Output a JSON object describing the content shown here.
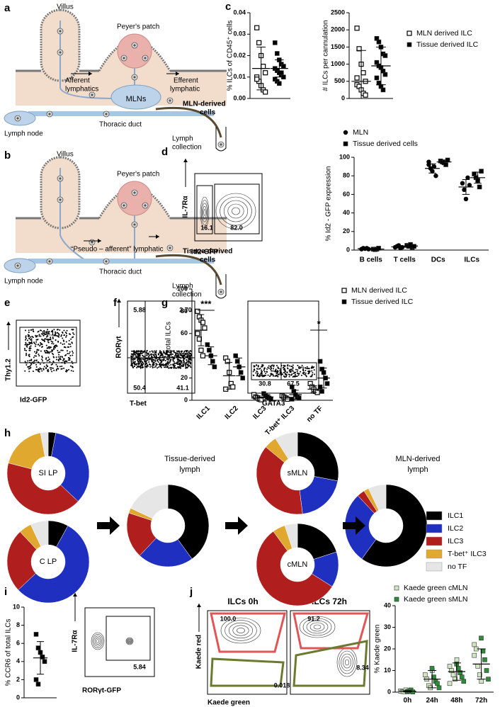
{
  "panel_labels": [
    "a",
    "b",
    "c",
    "d",
    "e",
    "f",
    "g",
    "h",
    "i",
    "j"
  ],
  "diagram_a": {
    "villus": "Villus",
    "peyers_patch": "Peyer's patch",
    "afferent": [
      "Afferent",
      "lymphatics"
    ],
    "efferent": [
      "Efferent",
      "lymphatic"
    ],
    "mlns": "MLNs",
    "output": [
      "MLN-derived",
      "cells"
    ],
    "lymph_node": "Lymph node",
    "thoracic_duct": "Thoracic duct",
    "collection": [
      "Lymph",
      "collection"
    ]
  },
  "diagram_b": {
    "villus": "Villus",
    "peyers_patch": "Peyer's patch",
    "pseudo_afferent": "“Pseudo – afferent” lymphatic",
    "output": [
      "Tissue-derived",
      "cells"
    ],
    "lymph_node": "Lymph node",
    "thoracic_duct": "Thoracic duct",
    "collection": [
      "Lymph",
      "collection"
    ]
  },
  "flow_plots": [
    {
      "y_label": "IL-7Rα",
      "x_label": "Id2-GFP",
      "gates": [
        "16.1",
        "82.0"
      ]
    },
    {
      "y_label": "Thy1.2",
      "x_label": "Id2-GFP",
      "gates": [
        "89.1"
      ]
    },
    {
      "y_label": "RORγt",
      "x_label": "T-bet",
      "gates": [
        "5.88",
        "2.70",
        "50.4",
        "41.1"
      ]
    },
    {
      "x_label": "GATA3",
      "gates": [
        "30.8",
        "67.5"
      ]
    },
    {
      "y_label": "IL-7Rα",
      "x_label": "RORγt-GFP",
      "gates": [
        "5.84"
      ]
    },
    {
      "title": "ILCs 0h",
      "y_label": "Kaede red",
      "x_label": "Kaede green",
      "gates": [
        "100.0",
        "0.018"
      ]
    },
    {
      "title": "ILCs 72h",
      "gates": [
        "91.2",
        "8.34"
      ]
    }
  ],
  "charts": [
    {
      "type": "dot",
      "y_label": "% ILCs of CD45⁺ cells",
      "categories": [
        null
      ],
      "ylim": [
        0,
        0.04
      ],
      "yticks": [
        {
          "value": 0,
          "label": "0.00"
        },
        0.01,
        0.02,
        0.03,
        0.04
      ],
      "series": [
        {
          "name": "MLN derived ILC",
          "marker": "open-square",
          "color": "#000000",
          "values": [
            [
              0.033,
              0.026,
              0.02,
              0.015,
              0.012,
              0.01,
              0.008,
              0.006,
              0.004,
              0.003,
              0.009
            ]
          ],
          "mean": [
            0.014
          ],
          "sd": [
            0.01
          ]
        },
        {
          "name": "Tissue derived ILC",
          "marker": "square",
          "color": "#000000",
          "values": [
            [
              0.026,
              0.021,
              0.018,
              0.016,
              0.015,
              0.014,
              0.013,
              0.012,
              0.011,
              0.01,
              0.009,
              0.008,
              0.007,
              0.012,
              0.015
            ]
          ],
          "mean": [
            0.014
          ],
          "sd": [
            0.004
          ]
        }
      ]
    },
    {
      "type": "dot",
      "y_label": "# ILCs per cannulation",
      "categories": [
        null
      ],
      "ylim": [
        0,
        2500
      ],
      "yticks": [
        0,
        500,
        1000,
        1500,
        2000,
        2500
      ],
      "legend": "right",
      "series": [
        {
          "name": "MLN derived ILC",
          "marker": "open-square",
          "color": "#000000",
          "values": [
            [
              2050,
              1450,
              1000,
              750,
              500,
              400,
              350,
              250,
              150,
              100,
              600
            ]
          ],
          "mean": [
            500
          ],
          "sd": [
            900
          ]
        },
        {
          "name": "Tissue derived ILC",
          "marker": "square",
          "color": "#000000",
          "values": [
            [
              1750,
              1650,
              1500,
              1300,
              1250,
              1050,
              950,
              900,
              800,
              700,
              600,
              450,
              350,
              250
            ]
          ],
          "mean": [
            950
          ],
          "sd": [
            550
          ]
        }
      ]
    },
    {
      "type": "dot",
      "y_label": "% Id2 - GFP expression",
      "categories": [
        "B cells",
        "T cells",
        "DCs",
        "ILCs"
      ],
      "ylim": [
        0,
        100
      ],
      "yticks": [
        0,
        20,
        40,
        60,
        80,
        100
      ],
      "legend": "top",
      "series": [
        {
          "name": "MLN",
          "marker": "circle",
          "color": "#000000",
          "values": [
            [
              1,
              2,
              1.5,
              2,
              1
            ],
            [
              3,
              4,
              5,
              2,
              3
            ],
            [
              92,
              88,
              85,
              90,
              80,
              95
            ],
            [
              72,
              65,
              55,
              78,
              70
            ]
          ],
          "mean": [
            1.5,
            3.5,
            88,
            68
          ],
          "sd": [
            0.5,
            1.2,
            5,
            8
          ]
        },
        {
          "name": "Tissue derived cells",
          "marker": "square",
          "color": "#000000",
          "values": [
            [
              1,
              0.5,
              1,
              2
            ],
            [
              5,
              4,
              6,
              3,
              4
            ],
            [
              96,
              95,
              94,
              92,
              97
            ],
            [
              82,
              78,
              75,
              68,
              85
            ]
          ],
          "mean": [
            1.1,
            4.4,
            95,
            78
          ],
          "sd": [
            0.6,
            1.1,
            2,
            6
          ]
        }
      ]
    },
    {
      "type": "dot",
      "y_label": "% of total ILCs",
      "categories": [
        "ILC1",
        "ILC2",
        "ILC3",
        "T-bet⁺ ILC3",
        "no TF"
      ],
      "ylim": [
        0,
        100
      ],
      "yticks": [
        0,
        20,
        40,
        60,
        80,
        100
      ],
      "legend": "right",
      "annotations": [
        "***",
        "*"
      ],
      "series": [
        {
          "name": "MLN derived ILC",
          "marker": "open-square",
          "color": "#000000",
          "values": [
            [
              80,
              75,
              72,
              70,
              65,
              60,
              55,
              45,
              40
            ],
            [
              38,
              35,
              25,
              15,
              12,
              10
            ],
            [
              5,
              3,
              2,
              1,
              0.5
            ],
            [
              4,
              3,
              2,
              1
            ],
            [
              15,
              12,
              10,
              8,
              7
            ]
          ],
          "mean": [
            63,
            22,
            2,
            2.5,
            10
          ],
          "sd": [
            14,
            12,
            2,
            1.3,
            3
          ]
        },
        {
          "name": "Tissue derived ILC",
          "marker": "square",
          "color": "#000000",
          "values": [
            [
              50,
              45,
              40,
              35,
              30
            ],
            [
              40,
              35,
              30,
              25,
              20
            ],
            [
              6,
              4,
              3,
              2,
              1
            ],
            [
              12,
              8,
              5,
              3,
              2,
              1
            ],
            [
              35,
              28,
              25,
              20,
              15,
              12,
              8
            ]
          ],
          "mean": [
            40,
            30,
            3,
            5,
            20
          ],
          "sd": [
            8,
            8,
            2,
            4,
            9
          ]
        }
      ]
    },
    {
      "type": "dot",
      "y_label": "% CCR6 of total ILCs",
      "categories": [
        null
      ],
      "ylim": [
        0,
        10
      ],
      "yticks": [
        0,
        2,
        4,
        6,
        8,
        10
      ],
      "marker": "square",
      "color": "#000000",
      "values": [
        [
          7,
          5.5,
          5,
          4.5,
          4,
          2,
          1.5
        ]
      ],
      "mean": [
        4.4
      ],
      "sd": [
        1.8
      ]
    },
    {
      "type": "dot",
      "y_label": "% Kaede green",
      "categories": [
        "0h",
        "24h",
        "48h",
        "72h"
      ],
      "ylim": [
        0,
        40
      ],
      "yticks": [
        0,
        10,
        20,
        30,
        40
      ],
      "legend": "top",
      "mean": [
        0.4,
        6,
        9.5,
        13
      ],
      "sd": [
        0.3,
        4,
        4,
        7
      ],
      "series": [
        {
          "name": "Kaede green cMLN",
          "marker": "square",
          "color": "#d3e6c3",
          "values": [
            [
              0.5,
              0.3,
              0.2,
              1
            ],
            [
              8,
              6,
              3,
              2,
              10
            ],
            [
              12,
              10,
              8,
              6,
              15,
              4
            ],
            [
              22,
              20,
              12,
              8,
              5,
              17
            ]
          ]
        },
        {
          "name": "Kaede green sMLN",
          "marker": "square",
          "color": "#2e8b3a",
          "values": [
            [
              0.2,
              0.5,
              1,
              0.1
            ],
            [
              11,
              7,
              5,
              4,
              2
            ],
            [
              13,
              11,
              9,
              7,
              5
            ],
            [
              25,
              19,
              15,
              10,
              6
            ]
          ]
        }
      ]
    }
  ],
  "donut_chart": {
    "type": "donut",
    "categories": [
      "ILC1",
      "ILC2",
      "ILC3",
      "T-bet⁺ ILC3",
      "no TF"
    ],
    "colors": [
      "#000000",
      "#1f2fbf",
      "#b01e1e",
      "#e0a82e",
      "#e6e6e6"
    ],
    "lymph_labels": [
      [
        "Tissue-derived",
        "lymph"
      ],
      [
        "MLN-derived",
        "lymph"
      ]
    ],
    "rings": [
      {
        "label": "SI LP",
        "values": [
          3,
          34,
          42,
          18,
          3
        ]
      },
      {
        "label": "C LP",
        "values": [
          8,
          55,
          25,
          5,
          7
        ]
      },
      {
        "values": [
          40,
          22,
          18,
          2,
          18
        ]
      },
      {
        "label": "sMLN",
        "values": [
          28,
          20,
          38,
          5,
          9
        ]
      },
      {
        "label": "cMLN",
        "values": [
          20,
          14,
          56,
          5,
          5
        ]
      },
      {
        "values": [
          60,
          28,
          3,
          2,
          7
        ]
      }
    ]
  }
}
